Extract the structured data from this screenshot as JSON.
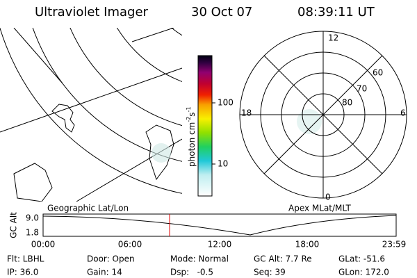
{
  "header": {
    "title": "Ultraviolet Imager",
    "date": "30 Oct 07",
    "time": "08:39:11 UT"
  },
  "colorbar": {
    "unit": "photon cm",
    "exp1": "-2",
    "unit2": "s",
    "exp2": "-1",
    "ticks": [
      "100",
      "10"
    ]
  },
  "polar": {
    "mlt_labels": [
      "12",
      "18",
      "6",
      "0"
    ],
    "mlat_labels": [
      "60",
      "70",
      "80"
    ]
  },
  "panels": {
    "left": "Geographic Lat/Lon",
    "right": "Apex MLat/MLT"
  },
  "altitude": {
    "axis_label": "GC Alt",
    "yticks": [
      "9.0",
      "1.8"
    ],
    "xticks": [
      "00:00",
      "06:00",
      "12:00",
      "18:00",
      "23:59"
    ]
  },
  "footer": {
    "rows": [
      [
        "Flt: LBHL",
        "Door: Open",
        "Mode: Normal",
        "GC Alt: 7.7 Re",
        "GLat: -51.6"
      ],
      [
        "IP: 36.0",
        "Gain: 14",
        "Dsp:   -0.5",
        "Seq: 39",
        "GLon: 172.0"
      ]
    ]
  }
}
